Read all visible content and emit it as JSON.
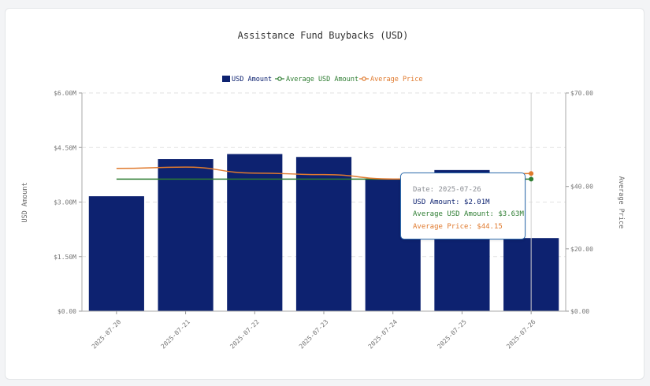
{
  "chart_data": {
    "type": "bar",
    "title": "Assistance Fund Buybacks (USD)",
    "categories": [
      "2025-07-20",
      "2025-07-21",
      "2025-07-22",
      "2025-07-23",
      "2025-07-24",
      "2025-07-25",
      "2025-07-26"
    ],
    "series": [
      {
        "name": "USD Amount",
        "type": "bar",
        "axis": "left",
        "color": "#0d2270",
        "values": [
          3.16,
          4.18,
          4.32,
          4.24,
          3.63,
          3.88,
          2.01
        ]
      },
      {
        "name": "Average USD Amount",
        "type": "line",
        "axis": "left",
        "color": "#2e7d32",
        "values": [
          3.63,
          3.63,
          3.63,
          3.63,
          3.63,
          3.63,
          3.63
        ]
      },
      {
        "name": "Average Price",
        "type": "line",
        "axis": "right",
        "color": "#e07a2e",
        "values": [
          45.8,
          46.2,
          44.3,
          43.8,
          42.4,
          41.9,
          44.15
        ]
      }
    ],
    "ylabel": "USD Amount",
    "ylabel_right": "Average Price",
    "ylim": [
      0,
      6
    ],
    "ylim_right": [
      0,
      70
    ],
    "yticks_left": [
      "$0.00",
      "$1.50M",
      "$3.00M",
      "$4.50M",
      "$6.00M"
    ],
    "yticks_right": [
      "$0.00",
      "$20.00",
      "$40.00",
      "$70.00"
    ],
    "yticks_right_values": [
      0,
      20,
      40,
      70
    ],
    "grid": true,
    "legend_position": "top-center"
  },
  "tooltip": {
    "date": "Date: 2025-07-26",
    "usd": "USD Amount: $2.01M",
    "avg": "Average USD Amount: $3.63M",
    "price": "Average Price: $44.15"
  }
}
